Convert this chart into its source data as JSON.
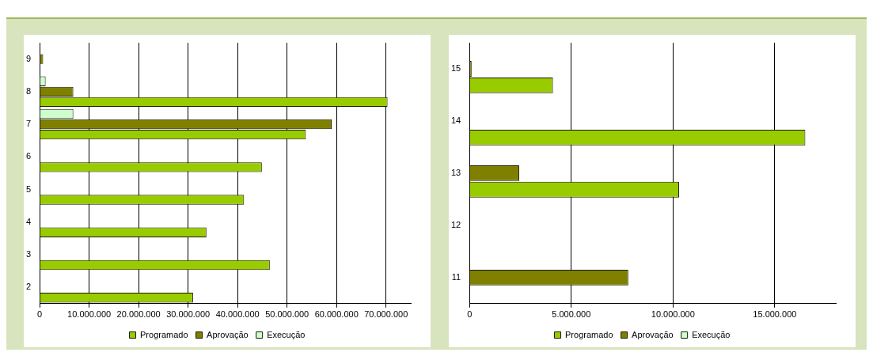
{
  "chart_data": [
    {
      "type": "bar",
      "orientation": "horizontal",
      "categories": [
        "9",
        "8",
        "7",
        "6",
        "5",
        "4",
        "3",
        "2"
      ],
      "series": [
        {
          "name": "Programado",
          "color": "#99cc00",
          "values": [
            null,
            70300000,
            53800000,
            44900000,
            41300000,
            33700000,
            46500000,
            31000000
          ]
        },
        {
          "name": "Aprovação",
          "color": "#808000",
          "values": [
            700000,
            6800000,
            59000000,
            null,
            null,
            null,
            null,
            null
          ]
        },
        {
          "name": "Execução",
          "color": "#ccffcc",
          "values": [
            null,
            1200000,
            6800000,
            null,
            null,
            null,
            null,
            null
          ]
        }
      ],
      "xlim": [
        0,
        75000000
      ],
      "xticks": [
        {
          "value": 0,
          "label": "0"
        },
        {
          "value": 10000000,
          "label": "10.000.000"
        },
        {
          "value": 20000000,
          "label": "20.000.000"
        },
        {
          "value": 30000000,
          "label": "30.000.000"
        },
        {
          "value": 40000000,
          "label": "40.000.000"
        },
        {
          "value": 50000000,
          "label": "50.000.000"
        },
        {
          "value": 60000000,
          "label": "60.000.000"
        },
        {
          "value": 70000000,
          "label": "70.000.000"
        }
      ],
      "grid": "x",
      "legend": "bottom"
    },
    {
      "type": "bar",
      "orientation": "horizontal",
      "categories": [
        "15",
        "14",
        "13",
        "12",
        "11"
      ],
      "series": [
        {
          "name": "Programado",
          "color": "#99cc00",
          "values": [
            4100000,
            16500000,
            10300000,
            null,
            null
          ]
        },
        {
          "name": "Aprovação",
          "color": "#808000",
          "values": [
            100000,
            null,
            2440000,
            null,
            7800000
          ]
        },
        {
          "name": "Execução",
          "color": "#ccffcc",
          "values": [
            null,
            null,
            null,
            null,
            null
          ]
        }
      ],
      "xlim": [
        0,
        18000000
      ],
      "xticks": [
        {
          "value": 0,
          "label": "0"
        },
        {
          "value": 5000000,
          "label": "5.000.000"
        },
        {
          "value": 10000000,
          "label": "10.000.000"
        },
        {
          "value": 15000000,
          "label": "15.000.000"
        }
      ],
      "grid": "x",
      "legend": "bottom"
    }
  ]
}
